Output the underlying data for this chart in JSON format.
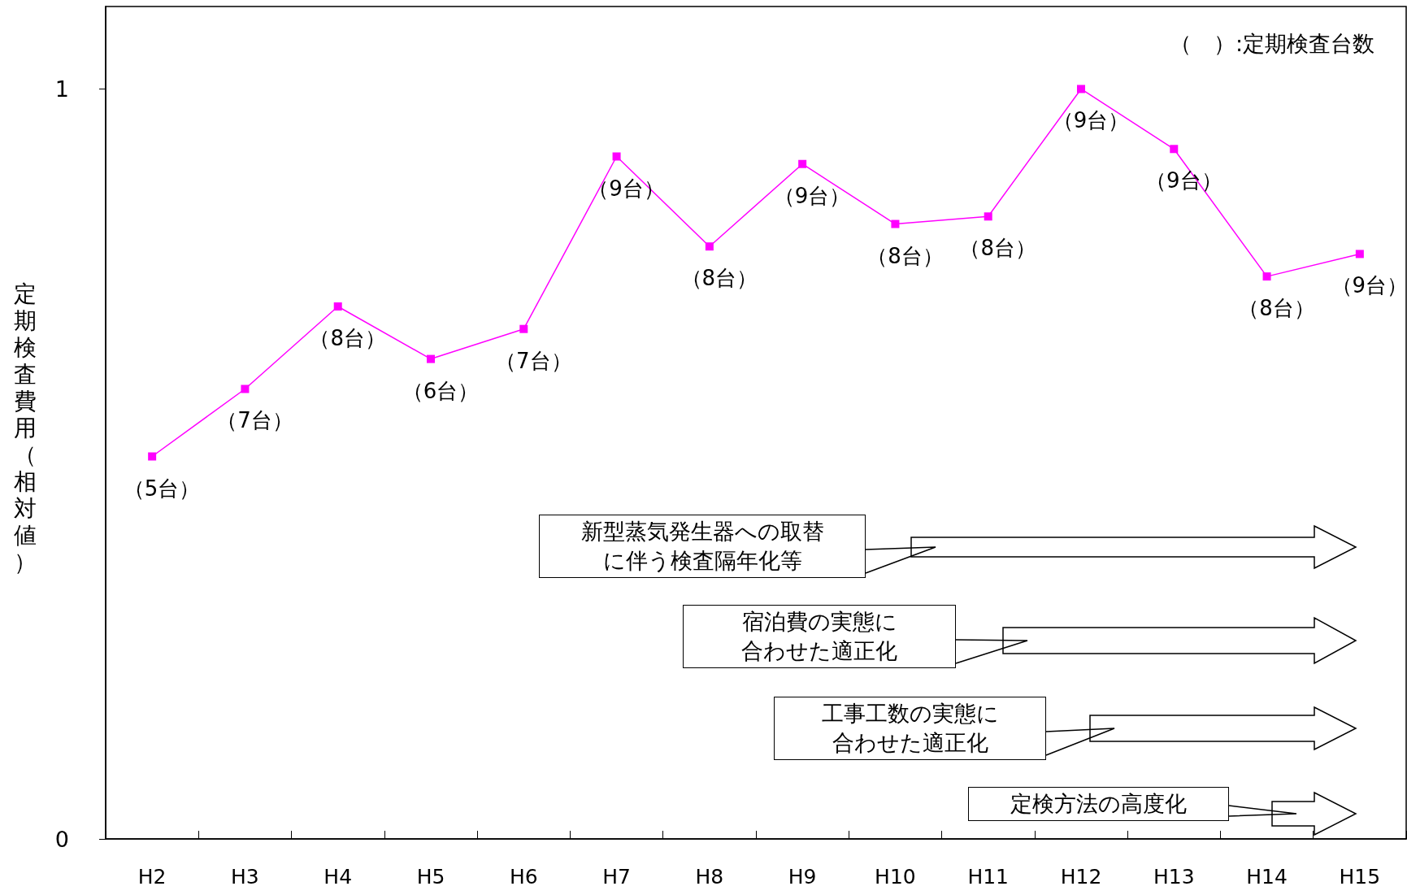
{
  "chart_data": {
    "type": "line",
    "ylabel": "定期検査費用（相対値）",
    "categories": [
      "H2",
      "H3",
      "H4",
      "H5",
      "H6",
      "H7",
      "H8",
      "H9",
      "H10",
      "H11",
      "H12",
      "H13",
      "H14",
      "H15"
    ],
    "series": [
      {
        "color": "#ff00ff",
        "values": [
          0.51,
          0.6,
          0.71,
          0.64,
          0.68,
          0.91,
          0.79,
          0.9,
          0.82,
          0.83,
          1.0,
          0.92,
          0.75,
          0.78
        ]
      }
    ],
    "ylim": [
      0,
      1.11
    ],
    "yticks": [
      0,
      1
    ],
    "grid": false,
    "marker": "square",
    "line_style": "solid",
    "annotations": [
      "（　）:定期検査台数",
      "新型蒸気発生器への取替に伴う検査隔年化等",
      "宿泊費の実態に合わせた適正化",
      "工事工数の実態に合わせた適正化",
      "定検方法の高度化",
      {
        "text": "（5台）",
        "x": "H2",
        "y": 0.51
      },
      {
        "text": "（7台）",
        "x": "H3",
        "y": 0.6
      },
      {
        "text": "（8台）",
        "x": "H4",
        "y": 0.71
      },
      {
        "text": "（6台）",
        "x": "H5",
        "y": 0.64
      },
      {
        "text": "（7台）",
        "x": "H6",
        "y": 0.68
      },
      {
        "text": "（9台）",
        "x": "H7",
        "y": 0.91
      },
      {
        "text": "（8台）",
        "x": "H8",
        "y": 0.79
      },
      {
        "text": "（9台）",
        "x": "H9",
        "y": 0.9
      },
      {
        "text": "（8台）",
        "x": "H10",
        "y": 0.82
      },
      {
        "text": "（8台）",
        "x": "H11",
        "y": 0.83
      },
      {
        "text": "（9台）",
        "x": "H12",
        "y": 1.0
      },
      {
        "text": "（9台）",
        "x": "H13",
        "y": 0.92
      },
      {
        "text": "（8台）",
        "x": "H14",
        "y": 0.75
      },
      {
        "text": "（9台）",
        "x": "H15",
        "y": 0.78
      }
    ]
  }
}
